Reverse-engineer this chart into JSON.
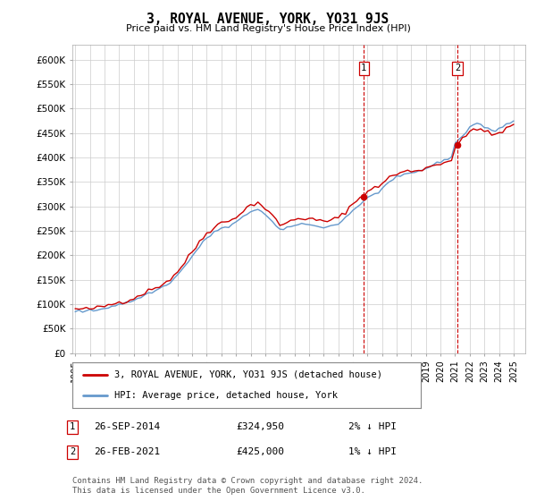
{
  "title": "3, ROYAL AVENUE, YORK, YO31 9JS",
  "subtitle": "Price paid vs. HM Land Registry's House Price Index (HPI)",
  "ylabel_ticks": [
    0,
    50000,
    100000,
    150000,
    200000,
    250000,
    300000,
    350000,
    400000,
    450000,
    500000,
    550000,
    600000
  ],
  "ytick_labels": [
    "£0",
    "£50K",
    "£100K",
    "£150K",
    "£200K",
    "£250K",
    "£300K",
    "£350K",
    "£400K",
    "£450K",
    "£500K",
    "£550K",
    "£600K"
  ],
  "ylim": [
    0,
    630000
  ],
  "xlim_start": 1994.8,
  "xlim_end": 2025.8,
  "legend_line1": "3, ROYAL AVENUE, YORK, YO31 9JS (detached house)",
  "legend_line2": "HPI: Average price, detached house, York",
  "sale1_date": "26-SEP-2014",
  "sale1_price": "£324,950",
  "sale1_hpi": "2% ↓ HPI",
  "sale1_year": 2014.75,
  "sale2_date": "26-FEB-2021",
  "sale2_price": "£425,000",
  "sale2_hpi": "1% ↓ HPI",
  "sale2_year": 2021.15,
  "footer": "Contains HM Land Registry data © Crown copyright and database right 2024.\nThis data is licensed under the Open Government Licence v3.0.",
  "line_color_red": "#cc0000",
  "line_color_blue": "#6699cc",
  "grid_color": "#cccccc",
  "background_color": "#ffffff",
  "sale_color": "#cc0000"
}
